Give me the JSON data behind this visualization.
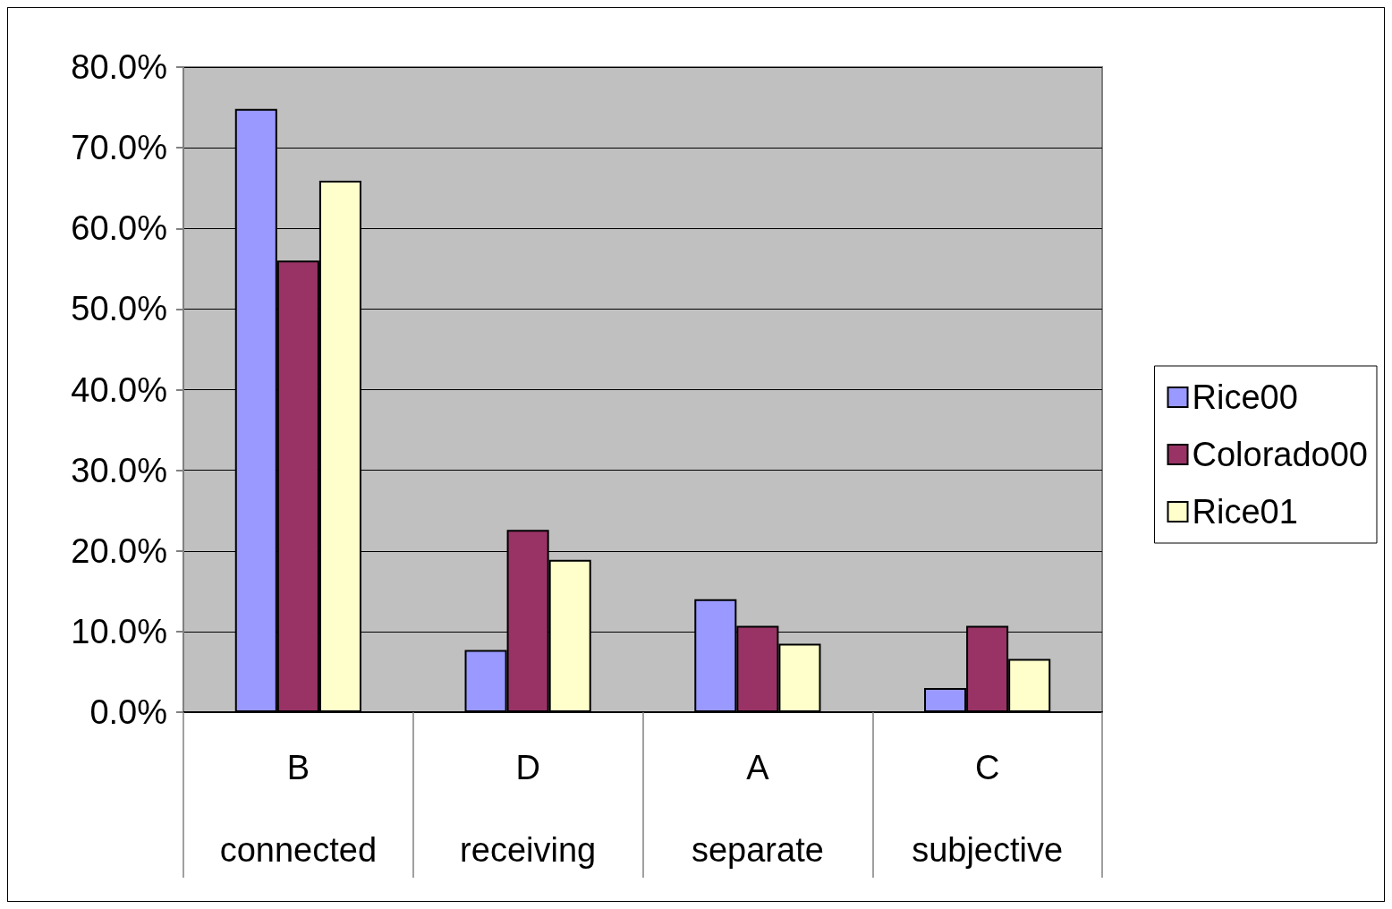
{
  "chart_data": {
    "type": "bar",
    "categories": [
      "B\nconnected",
      "D\nreceiving",
      "A\nseparate",
      "C\nsubjective"
    ],
    "series": [
      {
        "name": "Rice00",
        "color": "#9999ff",
        "values": [
          74.8,
          7.7,
          14.0,
          3.0
        ]
      },
      {
        "name": "Colorado00",
        "color": "#993366",
        "values": [
          56.0,
          22.6,
          10.7,
          10.7
        ]
      },
      {
        "name": "Rice01",
        "color": "#ffffcc",
        "values": [
          65.9,
          18.9,
          8.5,
          6.6
        ]
      }
    ],
    "ylim": [
      0,
      80
    ],
    "yticks": [
      {
        "value": 0,
        "label": "0.0%"
      },
      {
        "value": 10,
        "label": "10.0%"
      },
      {
        "value": 20,
        "label": "20.0%"
      },
      {
        "value": 30,
        "label": "30.0%"
      },
      {
        "value": 40,
        "label": "40.0%"
      },
      {
        "value": 50,
        "label": "50.0%"
      },
      {
        "value": 60,
        "label": "60.0%"
      },
      {
        "value": 70,
        "label": "70.0%"
      },
      {
        "value": 80,
        "label": "80.0%"
      }
    ],
    "grid": "y",
    "legend": "right"
  }
}
